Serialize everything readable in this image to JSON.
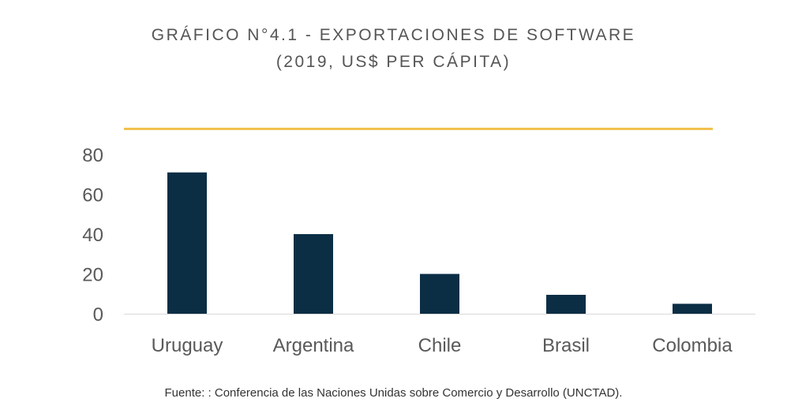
{
  "title": {
    "line1": "GRÁFICO N°4.1 - EXPORTACIONES DE SOFTWARE",
    "line2": "(2019, US$ PER CÁPITA)"
  },
  "source": "Fuente: : Conferencia de las Naciones Unidas sobre Comercio y Desarrollo (UNCTAD).",
  "colors": {
    "bar": "#0b2e45",
    "accent": "#f2c14e",
    "axis": "#d9d9d9",
    "tick_text": "#595959"
  },
  "chart_data": {
    "type": "bar",
    "categories": [
      "Uruguay",
      "Argentina",
      "Chile",
      "Brasil",
      "Colombia"
    ],
    "values": [
      71,
      40,
      20,
      9.5,
      5
    ],
    "ylim": [
      0,
      80
    ],
    "yticks": [
      0,
      20,
      40,
      60,
      80
    ],
    "ytick_labels": [
      "0",
      "20",
      "40",
      "60",
      "80"
    ],
    "grid": false,
    "legend": "none"
  }
}
